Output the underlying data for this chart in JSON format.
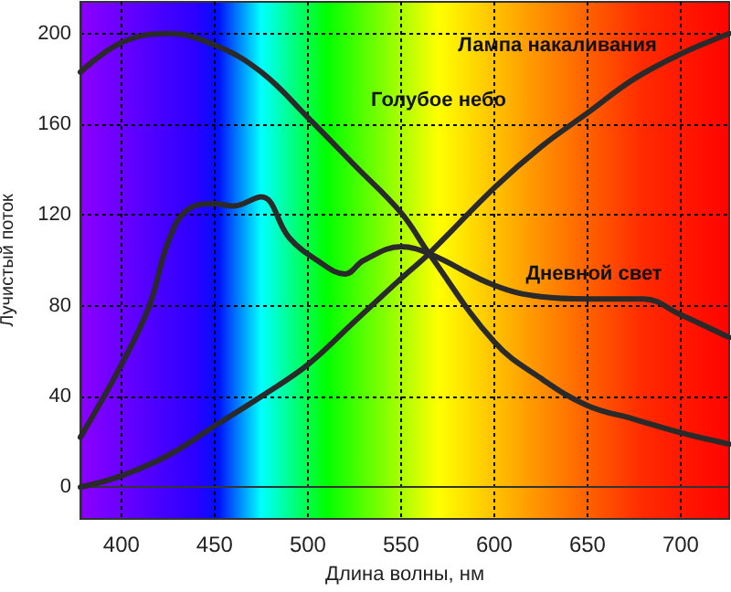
{
  "chart_data": {
    "type": "line",
    "xlabel": "Длина волны, нм",
    "ylabel": "Лучистый поток",
    "xlim": [
      378,
      726
    ],
    "xticks": [
      400,
      450,
      500,
      550,
      600,
      650,
      700
    ],
    "ylim": [
      -14,
      214
    ],
    "yticks": [
      0,
      40,
      80,
      120,
      160,
      200
    ],
    "grid": true,
    "marker": "none",
    "line_style": "solid",
    "series": [
      {
        "color": "#2a2a2a",
        "x": [
          378,
          400,
          425,
          450,
          475,
          500,
          525,
          550,
          565,
          600,
          625,
          650,
          675,
          700,
          726
        ],
        "values": [
          0,
          5,
          14,
          27,
          40,
          54,
          73,
          92,
          103,
          132,
          150,
          165,
          180,
          191,
          200
        ]
      },
      {
        "color": "#2a2a2a",
        "x": [
          378,
          400,
          425,
          450,
          475,
          500,
          525,
          550,
          565,
          600,
          625,
          650,
          675,
          700,
          726
        ],
        "values": [
          183,
          196,
          200,
          195,
          183,
          163,
          142,
          121,
          103,
          64,
          48,
          36,
          30,
          24,
          19
        ]
      },
      {
        "color": "#2a2a2a",
        "x": [
          378,
          400,
          415,
          425,
          435,
          450,
          460,
          475,
          490,
          505,
          520,
          530,
          550,
          565,
          600,
          625,
          650,
          680,
          700,
          726
        ],
        "values": [
          22,
          54,
          80,
          108,
          122,
          125,
          124,
          128,
          110,
          100,
          94,
          100,
          106,
          103,
          89,
          84,
          83,
          83,
          76,
          66
        ]
      }
    ],
    "annotations": [
      "Лампа накаливания",
      "Голубое небо",
      "Дневной свет"
    ]
  }
}
